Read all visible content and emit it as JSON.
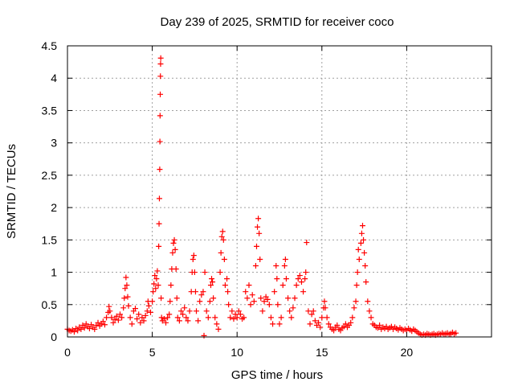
{
  "chart_data": {
    "type": "scatter",
    "title": "Day 239 of 2025, SRMTID for receiver coco",
    "xlabel": "GPS time / hours",
    "ylabel": "SRMTID / TECUs",
    "xlim": [
      0,
      25
    ],
    "ylim": [
      0,
      4.5
    ],
    "xticks": [
      0,
      5,
      10,
      15,
      20
    ],
    "xtick_labels": [
      "0",
      "5",
      "10",
      "15",
      "20"
    ],
    "yticks": [
      0,
      0.5,
      1,
      1.5,
      2,
      2.5,
      3,
      3.5,
      4,
      4.5
    ],
    "ytick_labels": [
      "0",
      "0.5",
      "1",
      "1.5",
      "2",
      "2.5",
      "3",
      "3.5",
      "4",
      "4.5"
    ],
    "grid": true,
    "marker": "+",
    "series": [
      {
        "name": "SRMTID",
        "color": "#ff0000",
        "points": [
          [
            0.0,
            0.12
          ],
          [
            0.1,
            0.1
          ],
          [
            0.2,
            0.09
          ],
          [
            0.3,
            0.11
          ],
          [
            0.4,
            0.08
          ],
          [
            0.5,
            0.13
          ],
          [
            0.6,
            0.1
          ],
          [
            0.7,
            0.15
          ],
          [
            0.8,
            0.12
          ],
          [
            0.9,
            0.18
          ],
          [
            1.0,
            0.14
          ],
          [
            1.1,
            0.2
          ],
          [
            1.2,
            0.16
          ],
          [
            1.3,
            0.13
          ],
          [
            1.4,
            0.19
          ],
          [
            1.5,
            0.15
          ],
          [
            1.6,
            0.12
          ],
          [
            1.7,
            0.18
          ],
          [
            1.8,
            0.22
          ],
          [
            1.9,
            0.17
          ],
          [
            2.0,
            0.2
          ],
          [
            2.1,
            0.24
          ],
          [
            2.2,
            0.19
          ],
          [
            2.3,
            0.3
          ],
          [
            2.4,
            0.38
          ],
          [
            2.45,
            0.47
          ],
          [
            2.5,
            0.4
          ],
          [
            2.6,
            0.3
          ],
          [
            2.7,
            0.22
          ],
          [
            2.8,
            0.27
          ],
          [
            2.9,
            0.32
          ],
          [
            3.0,
            0.26
          ],
          [
            3.1,
            0.35
          ],
          [
            3.2,
            0.3
          ],
          [
            3.3,
            0.45
          ],
          [
            3.35,
            0.6
          ],
          [
            3.4,
            0.75
          ],
          [
            3.45,
            0.92
          ],
          [
            3.5,
            0.8
          ],
          [
            3.55,
            0.62
          ],
          [
            3.6,
            0.48
          ],
          [
            3.7,
            0.3
          ],
          [
            3.8,
            0.2
          ],
          [
            3.9,
            0.4
          ],
          [
            4.0,
            0.44
          ],
          [
            4.1,
            0.28
          ],
          [
            4.2,
            0.35
          ],
          [
            4.3,
            0.22
          ],
          [
            4.4,
            0.3
          ],
          [
            4.5,
            0.25
          ],
          [
            4.6,
            0.33
          ],
          [
            4.7,
            0.4
          ],
          [
            4.75,
            0.55
          ],
          [
            4.8,
            0.48
          ],
          [
            4.9,
            0.38
          ],
          [
            5.0,
            0.55
          ],
          [
            5.05,
            0.7
          ],
          [
            5.1,
            0.82
          ],
          [
            5.15,
            0.95
          ],
          [
            5.2,
            0.75
          ],
          [
            5.25,
            0.9
          ],
          [
            5.3,
            1.02
          ],
          [
            5.35,
            0.8
          ],
          [
            5.38,
            1.4
          ],
          [
            5.4,
            1.75
          ],
          [
            5.42,
            2.14
          ],
          [
            5.44,
            2.59
          ],
          [
            5.45,
            3.02
          ],
          [
            5.46,
            3.42
          ],
          [
            5.47,
            3.75
          ],
          [
            5.48,
            4.03
          ],
          [
            5.49,
            4.22
          ],
          [
            5.5,
            4.31
          ],
          [
            5.52,
            0.6
          ],
          [
            5.55,
            0.3
          ],
          [
            5.6,
            0.25
          ],
          [
            5.7,
            0.28
          ],
          [
            5.8,
            0.22
          ],
          [
            5.9,
            0.3
          ],
          [
            6.0,
            0.35
          ],
          [
            6.05,
            0.55
          ],
          [
            6.1,
            0.8
          ],
          [
            6.15,
            1.05
          ],
          [
            6.2,
            1.3
          ],
          [
            6.25,
            1.45
          ],
          [
            6.3,
            1.5
          ],
          [
            6.35,
            1.35
          ],
          [
            6.4,
            1.05
          ],
          [
            6.45,
            0.6
          ],
          [
            6.5,
            0.3
          ],
          [
            6.6,
            0.25
          ],
          [
            6.7,
            0.4
          ],
          [
            6.8,
            0.35
          ],
          [
            6.9,
            0.45
          ],
          [
            7.0,
            0.3
          ],
          [
            7.1,
            0.25
          ],
          [
            7.2,
            0.4
          ],
          [
            7.3,
            0.7
          ],
          [
            7.35,
            1.0
          ],
          [
            7.4,
            1.2
          ],
          [
            7.45,
            1.26
          ],
          [
            7.5,
            1.0
          ],
          [
            7.55,
            0.7
          ],
          [
            7.6,
            0.4
          ],
          [
            7.7,
            0.25
          ],
          [
            7.8,
            0.55
          ],
          [
            7.9,
            0.65
          ],
          [
            8.0,
            0.7
          ],
          [
            8.05,
            0.02
          ],
          [
            8.1,
            1.0
          ],
          [
            8.2,
            0.4
          ],
          [
            8.3,
            0.3
          ],
          [
            8.4,
            0.55
          ],
          [
            8.45,
            0.8
          ],
          [
            8.5,
            0.9
          ],
          [
            8.55,
            0.85
          ],
          [
            8.6,
            0.6
          ],
          [
            8.7,
            0.3
          ],
          [
            8.8,
            0.2
          ],
          [
            8.9,
            0.12
          ],
          [
            9.0,
            1.0
          ],
          [
            9.05,
            1.3
          ],
          [
            9.1,
            1.55
          ],
          [
            9.15,
            1.63
          ],
          [
            9.2,
            1.5
          ],
          [
            9.25,
            1.2
          ],
          [
            9.3,
            0.8
          ],
          [
            9.4,
            0.9
          ],
          [
            9.45,
            0.7
          ],
          [
            9.5,
            0.5
          ],
          [
            9.6,
            0.3
          ],
          [
            9.7,
            0.4
          ],
          [
            9.8,
            0.28
          ],
          [
            9.9,
            0.35
          ],
          [
            10.0,
            0.3
          ],
          [
            10.1,
            0.4
          ],
          [
            10.2,
            0.35
          ],
          [
            10.3,
            0.28
          ],
          [
            10.4,
            0.3
          ],
          [
            10.5,
            0.7
          ],
          [
            10.6,
            0.6
          ],
          [
            10.7,
            0.8
          ],
          [
            10.8,
            0.5
          ],
          [
            10.9,
            0.65
          ],
          [
            11.0,
            0.55
          ],
          [
            11.1,
            1.1
          ],
          [
            11.15,
            1.4
          ],
          [
            11.2,
            1.7
          ],
          [
            11.25,
            1.83
          ],
          [
            11.3,
            1.6
          ],
          [
            11.35,
            1.2
          ],
          [
            11.4,
            0.6
          ],
          [
            11.5,
            0.4
          ],
          [
            11.6,
            0.55
          ],
          [
            11.7,
            0.62
          ],
          [
            11.8,
            0.58
          ],
          [
            11.9,
            0.5
          ],
          [
            12.0,
            0.3
          ],
          [
            12.1,
            0.2
          ],
          [
            12.2,
            0.7
          ],
          [
            12.3,
            1.1
          ],
          [
            12.35,
            0.9
          ],
          [
            12.4,
            0.5
          ],
          [
            12.5,
            0.2
          ],
          [
            12.6,
            0.3
          ],
          [
            12.7,
            0.8
          ],
          [
            12.8,
            1.1
          ],
          [
            12.85,
            1.2
          ],
          [
            12.9,
            0.9
          ],
          [
            13.0,
            0.6
          ],
          [
            13.1,
            0.4
          ],
          [
            13.2,
            0.3
          ],
          [
            13.3,
            0.45
          ],
          [
            13.4,
            0.6
          ],
          [
            13.5,
            0.8
          ],
          [
            13.6,
            0.9
          ],
          [
            13.7,
            0.95
          ],
          [
            13.8,
            0.85
          ],
          [
            13.9,
            0.7
          ],
          [
            14.0,
            0.9
          ],
          [
            14.05,
            1.0
          ],
          [
            14.1,
            1.46
          ],
          [
            14.2,
            0.4
          ],
          [
            14.3,
            0.2
          ],
          [
            14.4,
            0.35
          ],
          [
            14.5,
            0.4
          ],
          [
            14.6,
            0.25
          ],
          [
            14.7,
            0.18
          ],
          [
            14.8,
            0.22
          ],
          [
            14.9,
            0.15
          ],
          [
            15.0,
            0.3
          ],
          [
            15.1,
            0.45
          ],
          [
            15.15,
            0.55
          ],
          [
            15.2,
            0.45
          ],
          [
            15.3,
            0.3
          ],
          [
            15.4,
            0.2
          ],
          [
            15.5,
            0.15
          ],
          [
            15.6,
            0.12
          ],
          [
            15.7,
            0.1
          ],
          [
            15.8,
            0.15
          ],
          [
            15.9,
            0.18
          ],
          [
            16.0,
            0.12
          ],
          [
            16.1,
            0.1
          ],
          [
            16.2,
            0.14
          ],
          [
            16.3,
            0.16
          ],
          [
            16.4,
            0.2
          ],
          [
            16.5,
            0.15
          ],
          [
            16.6,
            0.18
          ],
          [
            16.7,
            0.22
          ],
          [
            16.8,
            0.3
          ],
          [
            16.9,
            0.45
          ],
          [
            17.0,
            0.55
          ],
          [
            17.05,
            0.8
          ],
          [
            17.1,
            1.0
          ],
          [
            17.15,
            1.35
          ],
          [
            17.2,
            1.2
          ],
          [
            17.3,
            1.45
          ],
          [
            17.35,
            1.6
          ],
          [
            17.4,
            1.72
          ],
          [
            17.45,
            1.5
          ],
          [
            17.5,
            1.3
          ],
          [
            17.55,
            1.1
          ],
          [
            17.6,
            0.85
          ],
          [
            17.7,
            0.55
          ],
          [
            17.8,
            0.4
          ],
          [
            17.9,
            0.3
          ],
          [
            18.0,
            0.2
          ],
          [
            18.1,
            0.18
          ],
          [
            18.2,
            0.15
          ],
          [
            18.3,
            0.14
          ],
          [
            18.4,
            0.18
          ],
          [
            18.5,
            0.12
          ],
          [
            18.6,
            0.15
          ],
          [
            18.7,
            0.13
          ],
          [
            18.8,
            0.16
          ],
          [
            18.9,
            0.12
          ],
          [
            19.0,
            0.14
          ],
          [
            19.1,
            0.16
          ],
          [
            19.2,
            0.12
          ],
          [
            19.3,
            0.15
          ],
          [
            19.4,
            0.13
          ],
          [
            19.5,
            0.11
          ],
          [
            19.6,
            0.14
          ],
          [
            19.7,
            0.12
          ],
          [
            19.8,
            0.1
          ],
          [
            19.9,
            0.12
          ],
          [
            20.0,
            0.1
          ],
          [
            20.1,
            0.13
          ],
          [
            20.2,
            0.11
          ],
          [
            20.3,
            0.09
          ],
          [
            20.4,
            0.12
          ],
          [
            20.5,
            0.1
          ],
          [
            20.6,
            0.08
          ],
          [
            20.7,
            0.06
          ],
          [
            20.8,
            0.04
          ],
          [
            20.9,
            0.03
          ],
          [
            21.0,
            0.04
          ],
          [
            21.1,
            0.03
          ],
          [
            21.2,
            0.05
          ],
          [
            21.3,
            0.04
          ],
          [
            21.4,
            0.03
          ],
          [
            21.5,
            0.04
          ],
          [
            21.6,
            0.05
          ],
          [
            21.7,
            0.03
          ],
          [
            21.8,
            0.04
          ],
          [
            21.9,
            0.05
          ],
          [
            22.0,
            0.04
          ],
          [
            22.1,
            0.06
          ],
          [
            22.2,
            0.04
          ],
          [
            22.3,
            0.05
          ],
          [
            22.4,
            0.06
          ],
          [
            22.5,
            0.04
          ],
          [
            22.6,
            0.05
          ],
          [
            22.7,
            0.07
          ],
          [
            22.8,
            0.05
          ],
          [
            22.9,
            0.06
          ]
        ]
      }
    ]
  }
}
